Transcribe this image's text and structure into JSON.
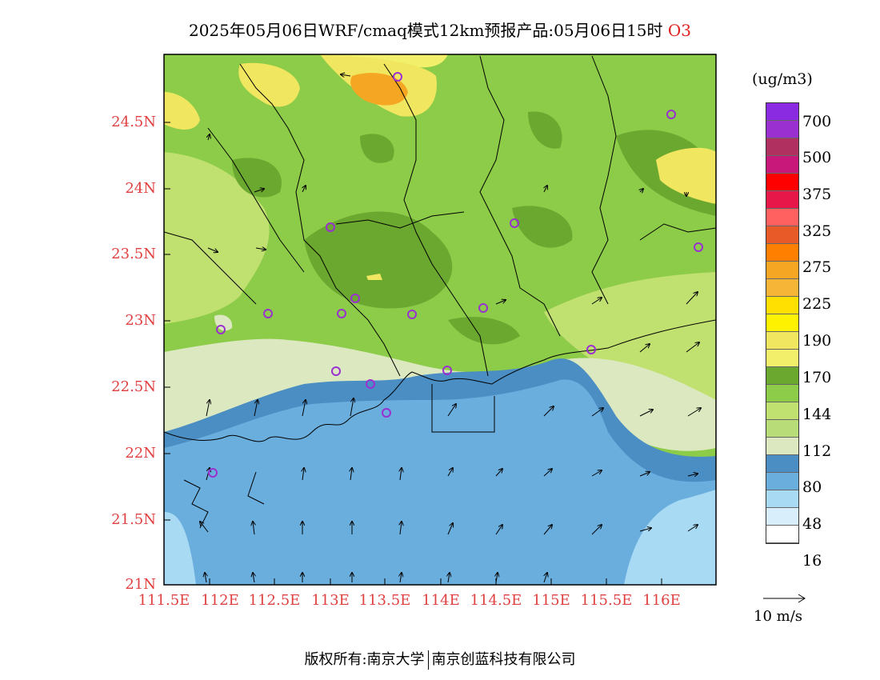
{
  "title": {
    "main": "2025年05月06日WRF/cmaq模式12km预报产品:05月06日15时",
    "species": "O3"
  },
  "axes": {
    "lat_labels": [
      "24.5N",
      "24N",
      "23.5N",
      "23N",
      "22.5N",
      "22N",
      "21.5N",
      "21N"
    ],
    "lon_labels": [
      "111.5E",
      "112E",
      "112.5E",
      "113E",
      "113.5E",
      "114E",
      "114.5E",
      "115E",
      "115.5E",
      "116E"
    ]
  },
  "colorbar": {
    "units": "(ug/m3)",
    "labels": [
      "700",
      "500",
      "375",
      "325",
      "275",
      "225",
      "190",
      "170",
      "144",
      "112",
      "80",
      "48",
      "16"
    ],
    "colors": [
      "#8a2be2",
      "#9b30d0",
      "#b03060",
      "#c8187a",
      "#ff0000",
      "#e8174a",
      "#ff6060",
      "#e85a28",
      "#ff8000",
      "#f5a623",
      "#f7b538",
      "#ffe000",
      "#fff200",
      "#f0e660",
      "#f2f06a",
      "#6aa830",
      "#8ccc48",
      "#c0e070",
      "#b8dc78",
      "#dce8c0",
      "#4a8ec4",
      "#6aaede",
      "#a8daf4",
      "#d8eefa",
      "#ffffff"
    ]
  },
  "reference_vector": {
    "label": "10 m/s"
  },
  "footer": {
    "left": "版权所有:南京大学",
    "right": "南京创蓝科技有限公司"
  },
  "colors": {
    "green_dark": "#6aa830",
    "green": "#8ccc48",
    "green_light": "#c0e070",
    "cream": "#dce8c0",
    "blue_dark": "#4a8ec4",
    "blue": "#6aaede",
    "blue_light": "#a8daf4",
    "yellow": "#f0e660",
    "orange": "#f5a623",
    "station": "#9b30d0"
  }
}
